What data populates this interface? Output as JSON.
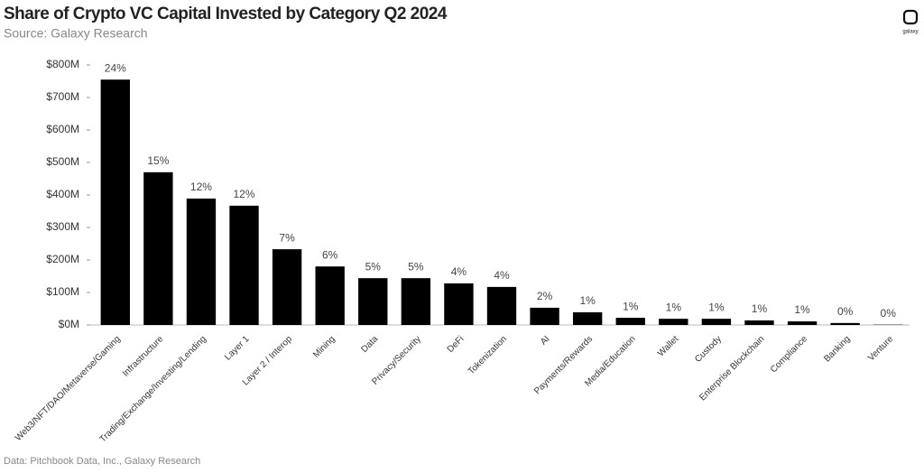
{
  "chart_data": {
    "type": "bar",
    "title": "Share of Crypto VC Capital Invested by Category Q2 2024",
    "subtitle": "Source: Galaxy Research",
    "footnote": "Data: Pitchbook Data, Inc., Galaxy Research",
    "logo": "galaxy",
    "categories": [
      "Web3/NFT/DAO/Metaverse/Gaming",
      "Infrastructure",
      "Trading/Exchange/Investing/Lending",
      "Layer 1",
      "Layer 2 / Interop",
      "Mining",
      "Data",
      "Privacy/Security",
      "DeFi",
      "Tokenization",
      "AI",
      "Payments/Rewards",
      "Media/Education",
      "Wallet",
      "Custody",
      "Enterprise Blockchain",
      "Compliance",
      "Banking",
      "Venture"
    ],
    "values": [
      755000000,
      470000000,
      389000000,
      367000000,
      233000000,
      180000000,
      144000000,
      144000000,
      128000000,
      117000000,
      53000000,
      39000000,
      22000000,
      19000000,
      19000000,
      14000000,
      11000000,
      6000000,
      1000000
    ],
    "share_labels": [
      "24%",
      "15%",
      "12%",
      "12%",
      "7%",
      "6%",
      "5%",
      "5%",
      "4%",
      "4%",
      "2%",
      "1%",
      "1%",
      "1%",
      "1%",
      "1%",
      "1%",
      "0%",
      "0%"
    ],
    "color": "#000000",
    "ylim": [
      0,
      800000000
    ],
    "yticks": [
      {
        "value": 0,
        "label": "$0M"
      },
      {
        "value": 100000000,
        "label": "$100M"
      },
      {
        "value": 200000000,
        "label": "$200M"
      },
      {
        "value": 300000000,
        "label": "$300M"
      },
      {
        "value": 400000000,
        "label": "$400M"
      },
      {
        "value": 500000000,
        "label": "$500M"
      },
      {
        "value": 600000000,
        "label": "$600M"
      },
      {
        "value": 700000000,
        "label": "$700M"
      },
      {
        "value": 800000000,
        "label": "$800M"
      }
    ],
    "grid": false
  }
}
